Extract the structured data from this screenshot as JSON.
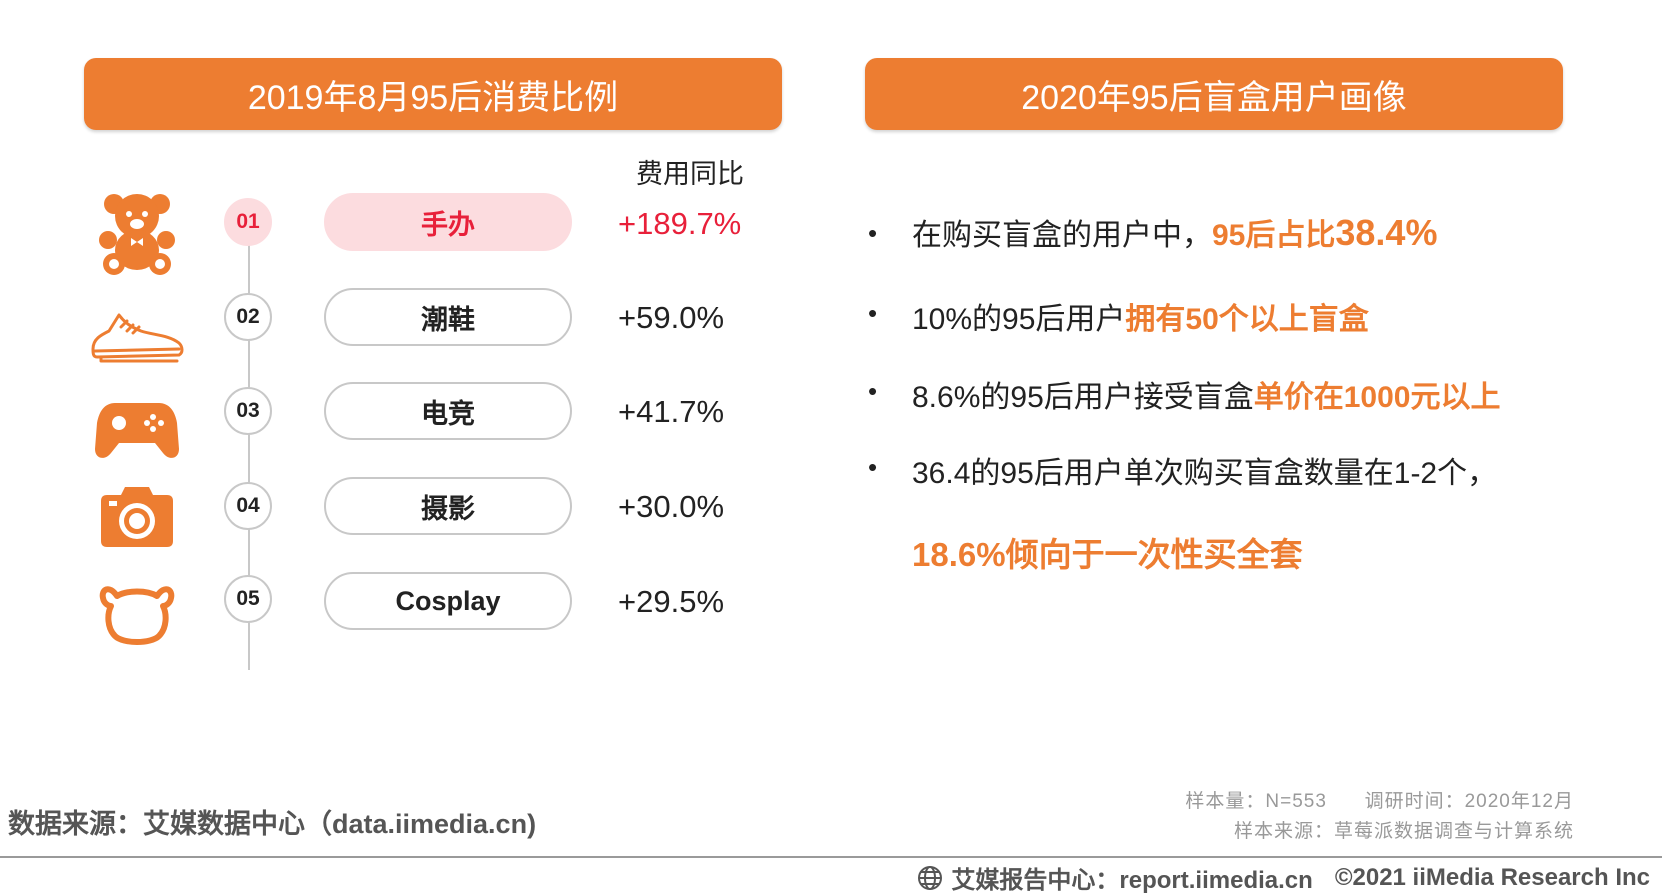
{
  "left_panel": {
    "title": "2019年8月95后消费比例",
    "column_header": "费用同比",
    "rows": [
      {
        "rank": "01",
        "label": "手办",
        "value": "+189.7%",
        "icon": "teddy-bear-icon"
      },
      {
        "rank": "02",
        "label": "潮鞋",
        "value": "+59.0%",
        "icon": "sneaker-icon"
      },
      {
        "rank": "03",
        "label": "电竞",
        "value": "+41.7%",
        "icon": "gamepad-icon"
      },
      {
        "rank": "04",
        "label": "摄影",
        "value": "+30.0%",
        "icon": "camera-icon"
      },
      {
        "rank": "05",
        "label": "Cosplay",
        "value": "+29.5%",
        "icon": "bear-head-icon"
      }
    ]
  },
  "right_panel": {
    "title": "2020年95后盲盒用户画像",
    "bullets": [
      {
        "text": "在购买盲盒的用户中，",
        "highlight_a": "95后占比",
        "highlight_b": "38.4%"
      },
      {
        "text": "10%的95后用户",
        "highlight": "拥有50个以上盲盒"
      },
      {
        "text": "8.6%的95后用户接受盲盒",
        "highlight": "单价在1000元以上"
      },
      {
        "text": "36.4的95后用户单次购买盲盒数量在1-2个，",
        "continuation": "18.6%倾向于一次性买全套"
      }
    ],
    "bullet_symbol": "•"
  },
  "footer": {
    "source": "数据来源：艾媒数据中心（data.iimedia.cn)",
    "sample_size": "样本量：N=553",
    "survey_time": "调研时间：2020年12月",
    "sample_source": "样本来源：草莓派数据调查与计算系统",
    "report": "艾媒报告中心：report.iimedia.cn",
    "copyright": "©2021  iiMedia Research  Inc"
  },
  "colors": {
    "accent": "#ED7D31",
    "highlight_red": "#E8203A",
    "highlight_pink": "#FCDCDF"
  }
}
